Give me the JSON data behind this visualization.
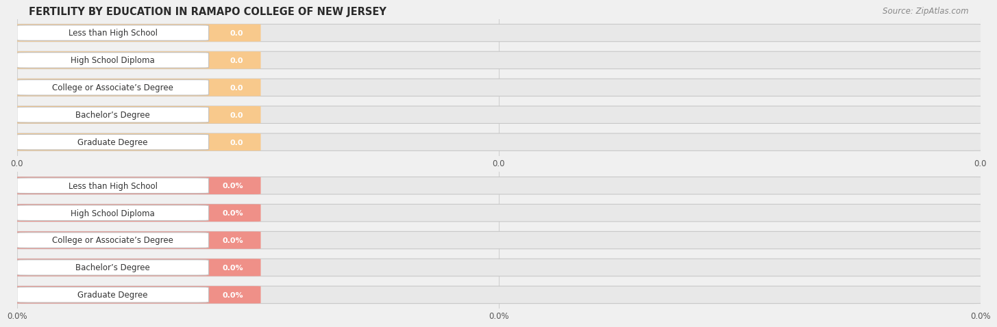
{
  "title": "FERTILITY BY EDUCATION IN RAMAPO COLLEGE OF NEW JERSEY",
  "source": "Source: ZipAtlas.com",
  "categories": [
    "Less than High School",
    "High School Diploma",
    "College or Associate’s Degree",
    "Bachelor’s Degree",
    "Graduate Degree"
  ],
  "top_values": [
    0.0,
    0.0,
    0.0,
    0.0,
    0.0
  ],
  "bottom_values": [
    0.0,
    0.0,
    0.0,
    0.0,
    0.0
  ],
  "top_bar_color": "#F8C98C",
  "top_bar_light": "#FDE8C8",
  "bottom_bar_color": "#EF9088",
  "bottom_bar_light": "#F8CFC9",
  "background_color": "#f0f0f0",
  "bar_bg_color": "#e8e8e8",
  "title_fontsize": 10.5,
  "source_fontsize": 8.5,
  "label_fontsize": 8.5,
  "value_fontsize": 8,
  "tick_fontsize": 8.5,
  "top_tick_labels": [
    "0.0",
    "0.0",
    "0.0"
  ],
  "bottom_tick_labels": [
    "0.0%",
    "0.0%",
    "0.0%"
  ],
  "grid_color": "#d0d0d0",
  "pill_edge_color": "#c8c8c8",
  "white": "#ffffff"
}
